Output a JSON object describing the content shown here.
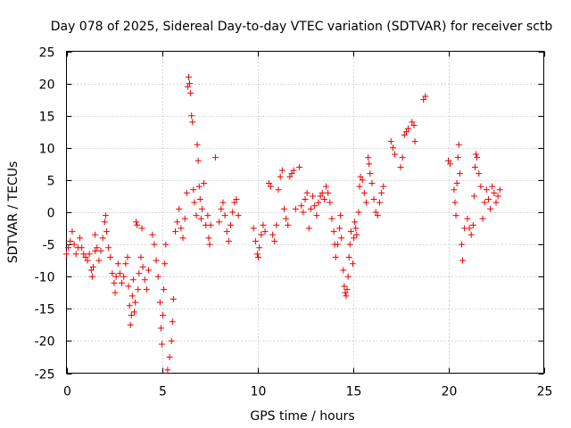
{
  "chart_data": {
    "type": "scatter",
    "title": "Day 078 of 2025, Sidereal Day-to-day VTEC variation (SDTVAR) for receiver sctb",
    "xlabel": "GPS time / hours",
    "ylabel": "SDTVAR / TECUs",
    "xlim": [
      0,
      25
    ],
    "ylim": [
      -25,
      25
    ],
    "xticks": [
      0,
      5,
      10,
      15,
      20,
      25
    ],
    "yticks": [
      -25,
      -20,
      -15,
      -10,
      -5,
      0,
      5,
      10,
      15,
      20,
      25
    ],
    "grid": true,
    "marker": "plus",
    "series": [
      {
        "name": "sctb",
        "color": "#ee0000",
        "points": [
          [
            0.0,
            -6.5
          ],
          [
            0.1,
            -5.5
          ],
          [
            0.2,
            -4.5
          ],
          [
            0.3,
            -3.0
          ],
          [
            0.4,
            -5.0
          ],
          [
            0.5,
            -6.5
          ],
          [
            0.6,
            -5.5
          ],
          [
            0.7,
            -4.0
          ],
          [
            0.8,
            -5.5
          ],
          [
            0.9,
            -6.5
          ],
          [
            1.0,
            -7.0
          ],
          [
            1.1,
            -7.5
          ],
          [
            1.2,
            -6.5
          ],
          [
            1.3,
            -9.0
          ],
          [
            1.35,
            -10.0
          ],
          [
            1.4,
            -8.5
          ],
          [
            1.5,
            -6.0
          ],
          [
            1.5,
            -3.5
          ],
          [
            1.6,
            -5.5
          ],
          [
            1.7,
            -7.5
          ],
          [
            1.8,
            -6.0
          ],
          [
            1.9,
            -4.0
          ],
          [
            2.0,
            -1.5
          ],
          [
            2.05,
            -0.5
          ],
          [
            2.1,
            -3.0
          ],
          [
            2.2,
            -5.5
          ],
          [
            2.3,
            -7.0
          ],
          [
            2.4,
            -9.5
          ],
          [
            2.5,
            -11.0
          ],
          [
            2.55,
            -12.5
          ],
          [
            2.6,
            -10.0
          ],
          [
            2.7,
            -8.0
          ],
          [
            2.8,
            -9.5
          ],
          [
            2.9,
            -11.0
          ],
          [
            3.0,
            -10.0
          ],
          [
            3.1,
            -8.0
          ],
          [
            3.2,
            -7.0
          ],
          [
            3.25,
            -11.5
          ],
          [
            3.3,
            -14.5
          ],
          [
            3.35,
            -17.5
          ],
          [
            3.4,
            -16.0
          ],
          [
            3.45,
            -13.0
          ],
          [
            3.5,
            -10.5
          ],
          [
            3.55,
            -15.5
          ],
          [
            3.6,
            -14.0
          ],
          [
            3.65,
            -1.5
          ],
          [
            3.7,
            -2.0
          ],
          [
            3.75,
            -12.0
          ],
          [
            3.8,
            -9.5
          ],
          [
            3.9,
            -7.0
          ],
          [
            3.95,
            -2.5
          ],
          [
            4.0,
            -8.5
          ],
          [
            4.1,
            -10.5
          ],
          [
            4.2,
            -12.0
          ],
          [
            4.3,
            -9.0
          ],
          [
            4.5,
            -3.5
          ],
          [
            4.6,
            -5.0
          ],
          [
            4.7,
            -7.5
          ],
          [
            4.8,
            -10.0
          ],
          [
            4.9,
            -14.0
          ],
          [
            4.95,
            -18.0
          ],
          [
            5.0,
            -20.5
          ],
          [
            5.05,
            -16.0
          ],
          [
            5.1,
            -12.0
          ],
          [
            5.15,
            -8.0
          ],
          [
            5.2,
            -5.0
          ],
          [
            5.3,
            -24.5
          ],
          [
            5.4,
            -22.5
          ],
          [
            5.5,
            -20.0
          ],
          [
            5.55,
            -17.0
          ],
          [
            5.6,
            -13.5
          ],
          [
            5.7,
            -3.0
          ],
          [
            5.8,
            -1.5
          ],
          [
            5.9,
            0.5
          ],
          [
            6.0,
            -2.5
          ],
          [
            6.1,
            -4.0
          ],
          [
            6.2,
            -1.0
          ],
          [
            6.3,
            3.0
          ],
          [
            6.35,
            19.5
          ],
          [
            6.4,
            21.0
          ],
          [
            6.45,
            20.0
          ],
          [
            6.5,
            18.5
          ],
          [
            6.55,
            15.0
          ],
          [
            6.6,
            14.0
          ],
          [
            6.65,
            3.5
          ],
          [
            6.7,
            1.5
          ],
          [
            6.8,
            -0.5
          ],
          [
            6.85,
            10.5
          ],
          [
            6.9,
            8.0
          ],
          [
            6.95,
            4.0
          ],
          [
            7.0,
            2.0
          ],
          [
            7.05,
            -1.0
          ],
          [
            7.1,
            0.5
          ],
          [
            7.2,
            4.5
          ],
          [
            7.3,
            -2.0
          ],
          [
            7.4,
            -0.5
          ],
          [
            7.45,
            -4.0
          ],
          [
            7.5,
            -5.0
          ],
          [
            7.55,
            -2.0
          ],
          [
            7.8,
            8.5
          ],
          [
            8.0,
            -1.5
          ],
          [
            8.1,
            0.5
          ],
          [
            8.2,
            1.5
          ],
          [
            8.3,
            -0.5
          ],
          [
            8.4,
            -3.0
          ],
          [
            8.5,
            -4.5
          ],
          [
            8.6,
            -2.0
          ],
          [
            8.7,
            0.0
          ],
          [
            8.8,
            1.5
          ],
          [
            8.9,
            2.0
          ],
          [
            9.0,
            -0.5
          ],
          [
            9.8,
            -2.5
          ],
          [
            9.9,
            -4.5
          ],
          [
            10.0,
            -6.5
          ],
          [
            10.05,
            -7.0
          ],
          [
            10.1,
            -5.5
          ],
          [
            10.2,
            -3.5
          ],
          [
            10.3,
            -2.0
          ],
          [
            10.4,
            -3.0
          ],
          [
            10.6,
            4.5
          ],
          [
            10.7,
            4.0
          ],
          [
            10.8,
            -3.5
          ],
          [
            10.9,
            -4.5
          ],
          [
            11.0,
            -2.0
          ],
          [
            11.1,
            3.5
          ],
          [
            11.2,
            5.5
          ],
          [
            11.3,
            6.5
          ],
          [
            11.4,
            0.5
          ],
          [
            11.5,
            -1.0
          ],
          [
            11.6,
            -2.0
          ],
          [
            11.7,
            5.5
          ],
          [
            11.8,
            6.0
          ],
          [
            11.9,
            6.5
          ],
          [
            12.0,
            0.5
          ],
          [
            12.2,
            7.0
          ],
          [
            12.3,
            1.0
          ],
          [
            12.4,
            0.0
          ],
          [
            12.5,
            2.0
          ],
          [
            12.6,
            3.0
          ],
          [
            12.7,
            -2.5
          ],
          [
            12.8,
            0.5
          ],
          [
            12.9,
            2.5
          ],
          [
            13.0,
            1.0
          ],
          [
            13.1,
            -0.5
          ],
          [
            13.2,
            1.5
          ],
          [
            13.3,
            2.5
          ],
          [
            13.4,
            3.0
          ],
          [
            13.5,
            2.0
          ],
          [
            13.6,
            4.0
          ],
          [
            13.7,
            3.0
          ],
          [
            13.8,
            1.5
          ],
          [
            13.9,
            -1.0
          ],
          [
            14.0,
            -3.0
          ],
          [
            14.05,
            -5.0
          ],
          [
            14.1,
            -7.0
          ],
          [
            14.2,
            -5.0
          ],
          [
            14.3,
            -2.5
          ],
          [
            14.35,
            -0.5
          ],
          [
            14.4,
            -4.0
          ],
          [
            14.5,
            -9.0
          ],
          [
            14.55,
            -11.5
          ],
          [
            14.6,
            -12.5
          ],
          [
            14.65,
            -13.0
          ],
          [
            14.7,
            -12.0
          ],
          [
            14.75,
            -10.0
          ],
          [
            14.8,
            -7.0
          ],
          [
            14.85,
            -5.0
          ],
          [
            14.9,
            -3.0
          ],
          [
            15.0,
            -8.0
          ],
          [
            15.05,
            -4.0
          ],
          [
            15.1,
            -1.5
          ],
          [
            15.15,
            -2.5
          ],
          [
            15.2,
            -3.5
          ],
          [
            15.3,
            0.0
          ],
          [
            15.35,
            4.0
          ],
          [
            15.4,
            5.5
          ],
          [
            15.5,
            5.0
          ],
          [
            15.6,
            3.0
          ],
          [
            15.7,
            1.5
          ],
          [
            15.8,
            8.5
          ],
          [
            15.85,
            7.5
          ],
          [
            15.9,
            6.0
          ],
          [
            16.0,
            4.5
          ],
          [
            16.1,
            2.0
          ],
          [
            16.2,
            0.0
          ],
          [
            16.3,
            -0.5
          ],
          [
            16.4,
            1.5
          ],
          [
            16.5,
            3.0
          ],
          [
            16.6,
            4.0
          ],
          [
            17.0,
            11.0
          ],
          [
            17.1,
            10.0
          ],
          [
            17.2,
            9.0
          ],
          [
            17.5,
            7.0
          ],
          [
            17.6,
            8.5
          ],
          [
            17.7,
            12.0
          ],
          [
            17.8,
            12.5
          ],
          [
            17.9,
            13.0
          ],
          [
            18.1,
            14.0
          ],
          [
            18.2,
            13.5
          ],
          [
            18.25,
            11.0
          ],
          [
            18.7,
            17.5
          ],
          [
            18.8,
            18.0
          ],
          [
            20.0,
            8.0
          ],
          [
            20.1,
            7.5
          ],
          [
            20.3,
            3.5
          ],
          [
            20.35,
            1.5
          ],
          [
            20.4,
            -0.5
          ],
          [
            20.45,
            4.5
          ],
          [
            20.5,
            8.5
          ],
          [
            20.55,
            10.5
          ],
          [
            20.6,
            6.0
          ],
          [
            20.7,
            -5.0
          ],
          [
            20.75,
            -7.5
          ],
          [
            20.85,
            -2.5
          ],
          [
            21.0,
            -1.0
          ],
          [
            21.1,
            -2.5
          ],
          [
            21.2,
            -3.5
          ],
          [
            21.3,
            -2.0
          ],
          [
            21.35,
            2.5
          ],
          [
            21.4,
            7.0
          ],
          [
            21.45,
            9.0
          ],
          [
            21.5,
            8.5
          ],
          [
            21.6,
            6.0
          ],
          [
            21.7,
            4.0
          ],
          [
            21.8,
            -1.0
          ],
          [
            21.9,
            1.5
          ],
          [
            22.0,
            3.5
          ],
          [
            22.1,
            2.0
          ],
          [
            22.2,
            0.5
          ],
          [
            22.3,
            4.0
          ],
          [
            22.4,
            3.0
          ],
          [
            22.5,
            1.5
          ],
          [
            22.6,
            2.5
          ],
          [
            22.7,
            3.5
          ]
        ]
      }
    ]
  }
}
